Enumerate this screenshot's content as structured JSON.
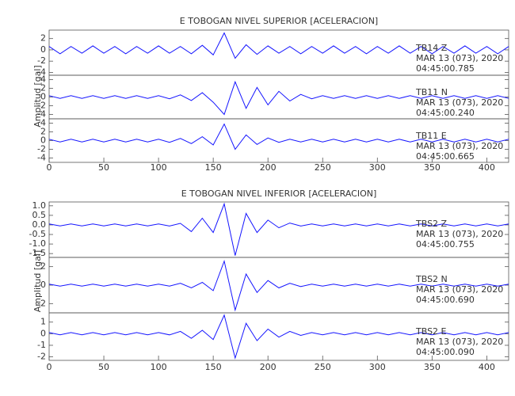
{
  "chart_data": [
    {
      "type": "line",
      "title": "E TOBOGAN NIVEL SUPERIOR [ACELERACION]",
      "ylabel": "Amplitud [gal]",
      "color": "#1515ff",
      "xlim": [
        0,
        420
      ],
      "xticks": [
        0,
        50,
        100,
        150,
        200,
        250,
        300,
        350,
        400
      ],
      "x": [
        0,
        10,
        20,
        30,
        40,
        50,
        60,
        70,
        80,
        90,
        100,
        110,
        120,
        130,
        140,
        150,
        160,
        170,
        180,
        190,
        200,
        210,
        220,
        230,
        240,
        250,
        260,
        270,
        280,
        290,
        300,
        310,
        320,
        330,
        340,
        350,
        360,
        370,
        380,
        390,
        400,
        410,
        420
      ],
      "panels": [
        {
          "station": "TB14   Z",
          "date": "MAR 13 (073), 2020",
          "time": "04:45:00.785",
          "ylim": [
            -4.5,
            3.5
          ],
          "yticks": [
            -4,
            -2,
            0,
            2
          ],
          "values": [
            0.6,
            -0.7,
            0.6,
            -0.6,
            0.7,
            -0.6,
            0.6,
            -0.7,
            0.6,
            -0.6,
            0.7,
            -0.6,
            0.6,
            -0.7,
            0.8,
            -0.9,
            3.0,
            -1.5,
            0.9,
            -0.8,
            0.7,
            -0.6,
            0.6,
            -0.7,
            0.6,
            -0.6,
            0.7,
            -0.6,
            0.6,
            -0.7,
            0.6,
            -0.6,
            0.7,
            -0.6,
            0.6,
            -0.7,
            0.6,
            -0.6,
            0.7,
            -0.6,
            0.6,
            -0.7,
            0.6
          ]
        },
        {
          "station": "TB11   N",
          "date": "MAR 13 (073), 2020",
          "time": "04:45:00.240",
          "ylim": [
            -5,
            5
          ],
          "yticks": [
            -4,
            -2,
            0,
            2,
            4
          ],
          "values": [
            0.3,
            -0.3,
            0.3,
            -0.3,
            0.3,
            -0.3,
            0.3,
            -0.3,
            0.3,
            -0.3,
            0.3,
            -0.4,
            0.5,
            -0.8,
            1.0,
            -1.2,
            -4.0,
            3.5,
            -2.6,
            2.2,
            -1.8,
            1.3,
            -0.9,
            0.6,
            -0.4,
            0.3,
            -0.3,
            0.3,
            -0.3,
            0.3,
            -0.3,
            0.3,
            -0.3,
            0.3,
            -0.3,
            0.3,
            -0.3,
            0.3,
            -0.3,
            0.3,
            -0.3,
            0.3,
            -0.3
          ]
        },
        {
          "station": "TB11   E",
          "date": "MAR 13 (073), 2020",
          "time": "04:45:00.665",
          "ylim": [
            -5,
            5
          ],
          "yticks": [
            -4,
            -2,
            0,
            2,
            4
          ],
          "values": [
            0.3,
            -0.3,
            0.3,
            -0.3,
            0.3,
            -0.3,
            0.3,
            -0.3,
            0.3,
            -0.3,
            0.3,
            -0.4,
            0.5,
            -0.7,
            0.9,
            -1.0,
            3.8,
            -2.0,
            1.3,
            -0.9,
            0.6,
            -0.4,
            0.3,
            -0.3,
            0.3,
            -0.3,
            0.3,
            -0.3,
            0.3,
            -0.3,
            0.3,
            -0.3,
            0.3,
            -0.3,
            0.3,
            -0.3,
            0.3,
            -0.3,
            0.3,
            -0.3,
            0.3,
            -0.3,
            0.3
          ]
        }
      ]
    },
    {
      "type": "line",
      "title": "E TOBOGAN NIVEL INFERIOR [ACELERACION]",
      "ylabel": "Amplitud [gal]",
      "color": "#1515ff",
      "xlim": [
        0,
        420
      ],
      "xticks": [
        0,
        50,
        100,
        150,
        200,
        250,
        300,
        350,
        400
      ],
      "x": [
        0,
        10,
        20,
        30,
        40,
        50,
        60,
        70,
        80,
        90,
        100,
        110,
        120,
        130,
        140,
        150,
        160,
        170,
        180,
        190,
        200,
        210,
        220,
        230,
        240,
        250,
        260,
        270,
        280,
        290,
        300,
        310,
        320,
        330,
        340,
        350,
        360,
        370,
        380,
        390,
        400,
        410,
        420
      ],
      "panels": [
        {
          "station": "TBS2   Z",
          "date": "MAR 13 (073), 2020",
          "time": "04:45:00.755",
          "ylim": [
            -1.7,
            1.2
          ],
          "yticks": [
            {
              "value": -1.5,
              "label": "-1.5"
            },
            {
              "value": -1,
              "label": "-1.0"
            },
            -0.5,
            {
              "value": 0,
              "label": "0.0"
            },
            0.5,
            {
              "value": 1,
              "label": "1.0"
            }
          ],
          "values": [
            0.05,
            -0.05,
            0.05,
            -0.05,
            0.05,
            -0.05,
            0.05,
            -0.05,
            0.05,
            -0.05,
            0.05,
            -0.06,
            0.08,
            -0.35,
            0.35,
            -0.4,
            1.1,
            -1.6,
            0.6,
            -0.4,
            0.25,
            -0.15,
            0.1,
            -0.06,
            0.05,
            -0.05,
            0.05,
            -0.05,
            0.05,
            -0.05,
            0.05,
            -0.05,
            0.05,
            -0.05,
            0.05,
            -0.05,
            0.05,
            -0.05,
            0.05,
            -0.05,
            0.05,
            -0.05,
            0.05
          ]
        },
        {
          "station": "TBS2   N",
          "date": "MAR 13 (073), 2020",
          "time": "04:45:00.690",
          "ylim": [
            -3,
            3
          ],
          "yticks": [
            -2,
            0,
            2
          ],
          "values": [
            0.1,
            -0.1,
            0.1,
            -0.1,
            0.1,
            -0.1,
            0.1,
            -0.1,
            0.1,
            -0.1,
            0.1,
            -0.1,
            0.2,
            -0.3,
            0.3,
            -0.6,
            2.6,
            -2.7,
            1.2,
            -0.8,
            0.5,
            -0.3,
            0.2,
            -0.15,
            0.1,
            -0.1,
            0.1,
            -0.1,
            0.1,
            -0.1,
            0.1,
            -0.1,
            0.1,
            -0.1,
            0.1,
            -0.1,
            0.1,
            -0.1,
            0.1,
            -0.1,
            0.1,
            -0.1,
            0.1
          ]
        },
        {
          "station": "TBS2   E",
          "date": "MAR 13 (073), 2020",
          "time": "04:45:00.090",
          "ylim": [
            -2.3,
            1.8
          ],
          "yticks": [
            -2,
            -1,
            0,
            1
          ],
          "values": [
            0.1,
            -0.1,
            0.1,
            -0.1,
            0.1,
            -0.1,
            0.1,
            -0.1,
            0.1,
            -0.1,
            0.1,
            -0.1,
            0.2,
            -0.4,
            0.3,
            -0.5,
            1.6,
            -2.1,
            0.9,
            -0.6,
            0.4,
            -0.3,
            0.2,
            -0.15,
            0.1,
            -0.1,
            0.1,
            -0.1,
            0.1,
            -0.1,
            0.1,
            -0.1,
            0.1,
            -0.1,
            0.1,
            -0.1,
            0.1,
            -0.1,
            0.1,
            -0.1,
            0.1,
            -0.1,
            0.1
          ]
        }
      ]
    }
  ]
}
